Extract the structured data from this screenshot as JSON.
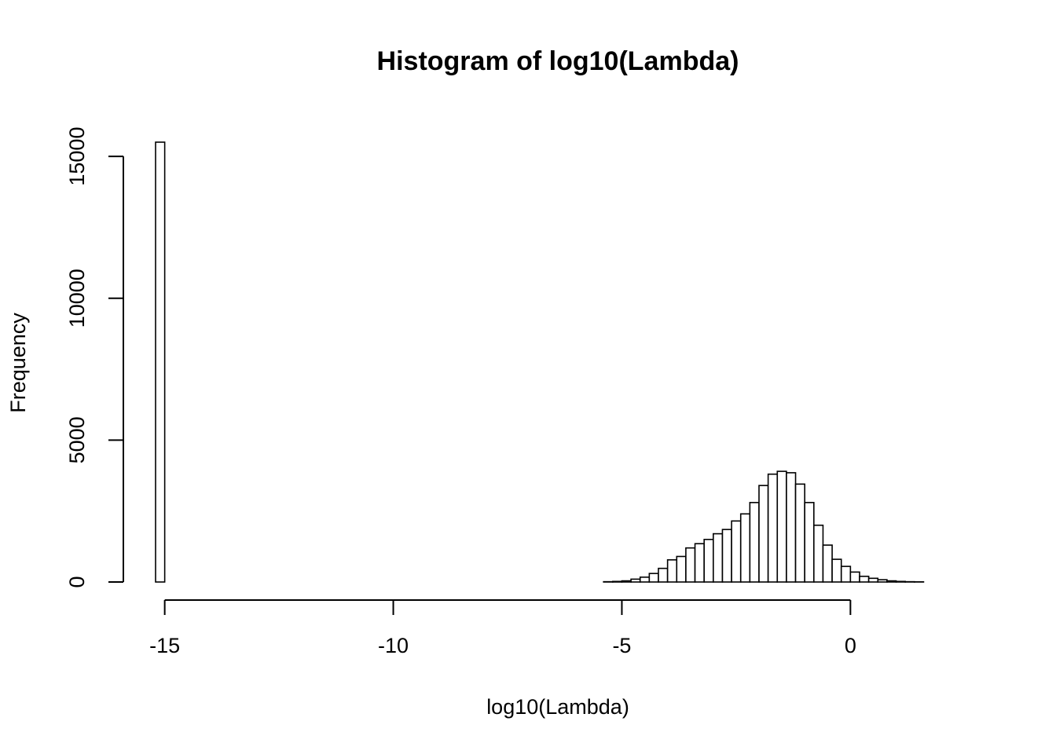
{
  "chart_data": {
    "type": "histogram",
    "title": "Histogram of log10(Lambda)",
    "x_label": "log10(Lambda)",
    "y_label": "Frequency",
    "bins": [
      -15.2,
      -15,
      -14.8,
      -14.6,
      -14.4,
      -14.2,
      -14,
      -13.8,
      -13.6,
      -13.4,
      -13.2,
      -13,
      -12.8,
      -12.6,
      -12.4,
      -12.2,
      -12,
      -11.8,
      -11.6,
      -11.4,
      -11.2,
      -11,
      -10.8,
      -10.6,
      -10.4,
      -10.2,
      -10,
      -9.8,
      -9.6,
      -9.4,
      -9.2,
      -9,
      -8.8,
      -8.6,
      -8.4,
      -8.2,
      -8,
      -7.8,
      -7.6,
      -7.4,
      -7.2,
      -7,
      -6.8,
      -6.6,
      -6.4,
      -6.2,
      -6,
      -5.8,
      -5.6,
      -5.4,
      -5.2,
      -5,
      -4.8,
      -4.6,
      -4.4,
      -4.2,
      -4,
      -3.8,
      -3.6,
      -3.4,
      -3.2,
      -3,
      -2.8,
      -2.6,
      -2.4,
      -2.2,
      -2,
      -1.8,
      -1.6,
      -1.4,
      -1.2,
      -1,
      -0.8,
      -0.6,
      -0.4,
      -0.2,
      0,
      0.2,
      0.4,
      0.6,
      0.8,
      1,
      1.2,
      1.4,
      1.6,
      1.8,
      2,
      2.2,
      2.4
    ],
    "values": [
      15500,
      0,
      0,
      0,
      0,
      0,
      0,
      0,
      0,
      0,
      0,
      0,
      0,
      0,
      0,
      0,
      0,
      0,
      0,
      0,
      0,
      0,
      0,
      0,
      0,
      0,
      0,
      0,
      0,
      0,
      0,
      0,
      0,
      0,
      0,
      0,
      0,
      0,
      0,
      0,
      0,
      0,
      0,
      0,
      0,
      0,
      0,
      0,
      0,
      10,
      20,
      40,
      100,
      170,
      300,
      480,
      780,
      900,
      1200,
      1350,
      1500,
      1700,
      1850,
      2150,
      2400,
      2800,
      3400,
      3800,
      3900,
      3850,
      3450,
      2800,
      2000,
      1300,
      800,
      550,
      350,
      200,
      130,
      80,
      40,
      20,
      10,
      5,
      0,
      0,
      0,
      0
    ],
    "color": "#ffffff",
    "edge_color": "#000000",
    "xlim": [
      -15.2,
      2.4
    ],
    "xticks": [
      -15,
      -10,
      -5,
      0
    ],
    "ylim": [
      0,
      15500
    ],
    "yticks": [
      0,
      5000,
      10000,
      15000
    ]
  }
}
